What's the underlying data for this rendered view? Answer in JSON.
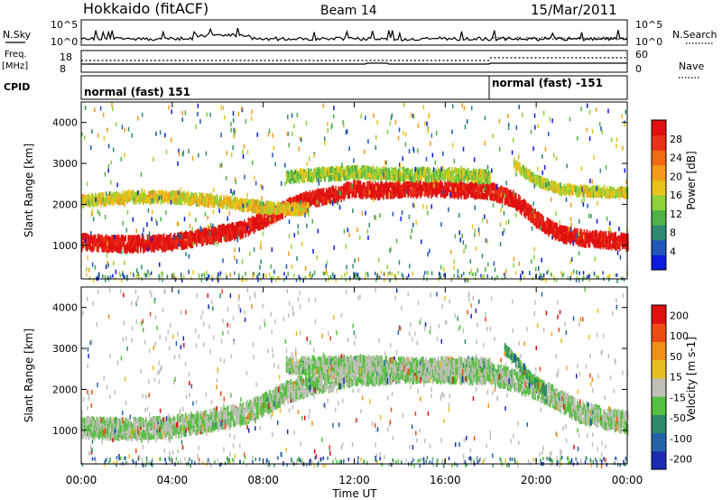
{
  "header": {
    "station": "Hokkaido (fitACF)",
    "beam": "Beam 14",
    "date": "15/Mar/2011"
  },
  "top_panels": {
    "nsky_label": "N.Sky",
    "nsearch_label": "N.Search",
    "nsky_ticks": [
      "10^5",
      "10^0"
    ],
    "nsky_right_ticks": [
      "10^5",
      "10^0"
    ],
    "freq_label_line1": "Freq.",
    "freq_label_line2": "[MHz]",
    "freq_ticks": [
      "18",
      "8"
    ],
    "nave_label": "Nave",
    "nave_ticks": [
      "60",
      "0"
    ],
    "cpid_label": "CPID",
    "cpid_segments": [
      {
        "label": "normal (fast) 151",
        "start_hour": 0
      },
      {
        "label": "normal (fast) -151",
        "start_hour": 18
      }
    ]
  },
  "chart_data": [
    {
      "type": "heatmap",
      "name": "power",
      "ylabel": "Slant Range [km]",
      "ylim": [
        180,
        4500
      ],
      "yticks": [
        1000,
        2000,
        3000,
        4000
      ],
      "xlim": [
        0,
        24
      ],
      "colorbar": {
        "label": "Power [dB]",
        "ticks": [
          "4",
          "8",
          "12",
          "16",
          "20",
          "24",
          "28"
        ],
        "colors": [
          "#0a1bdc",
          "#1f56b8",
          "#2f8a72",
          "#4fb14a",
          "#8fd13a",
          "#e8c41a",
          "#f59a1a",
          "#f06a14",
          "#e8321a",
          "#e01010"
        ]
      },
      "echo_bands": [
        {
          "x": [
            0,
            2,
            4,
            6,
            7,
            8,
            9,
            10,
            11,
            12,
            13,
            14,
            16,
            18,
            19,
            20,
            21,
            22,
            24
          ],
          "y": [
            1150,
            1100,
            1150,
            1350,
            1450,
            1700,
            2000,
            2200,
            2300,
            2450,
            2400,
            2450,
            2450,
            2400,
            2200,
            1700,
            1350,
            1250,
            1150
          ],
          "halfwidth": 160,
          "level": 0.95
        },
        {
          "x": [
            0,
            2,
            4,
            6,
            8,
            10
          ],
          "y": [
            2150,
            2250,
            2250,
            2150,
            2000,
            1950
          ],
          "halfwidth": 110,
          "level": 0.55
        },
        {
          "x": [
            9,
            12,
            14,
            16,
            18
          ],
          "y": [
            2750,
            2850,
            2800,
            2800,
            2750
          ],
          "halfwidth": 120,
          "level": 0.45
        },
        {
          "x": [
            19,
            20,
            21,
            22,
            24
          ],
          "y": [
            3050,
            2650,
            2450,
            2400,
            2350
          ],
          "halfwidth": 90,
          "level": 0.5
        }
      ]
    },
    {
      "type": "heatmap",
      "name": "velocity",
      "ylabel": "Slant Range [km]",
      "xlabel": "Time UT",
      "ylim": [
        180,
        4500
      ],
      "yticks": [
        1000,
        2000,
        3000,
        4000
      ],
      "xlim": [
        0,
        24
      ],
      "xticks": [
        "00:00",
        "04:00",
        "08:00",
        "12:00",
        "16:00",
        "20:00",
        "00:00"
      ],
      "colorbar": {
        "label": "Velocity [m s-1]",
        "ticks": [
          "200",
          "100",
          "50",
          "15",
          "-15",
          "-50",
          "-100",
          "-200"
        ],
        "colors": [
          "#1c2bb4",
          "#2563a8",
          "#2f8a6a",
          "#55c040",
          "#c0c0b8",
          "#e6c020",
          "#f0901a",
          "#ee4a14",
          "#e01010"
        ]
      },
      "echo_bands": [
        {
          "x": [
            0,
            2,
            4,
            6,
            7,
            8,
            9,
            10,
            11,
            12,
            13,
            14,
            16,
            18,
            19,
            20,
            21,
            22,
            24
          ],
          "y": [
            1150,
            1100,
            1150,
            1350,
            1450,
            1700,
            2000,
            2200,
            2300,
            2450,
            2450,
            2500,
            2500,
            2450,
            2300,
            2100,
            1800,
            1500,
            1250
          ],
          "halfwidth": 230,
          "level": 0.45
        },
        {
          "x": [
            9,
            12,
            14,
            16,
            18
          ],
          "y": [
            2650,
            2700,
            2650,
            2650,
            2650
          ],
          "halfwidth": 170,
          "level": 0.45
        },
        {
          "x": [
            18.6,
            19.2,
            20,
            20.4
          ],
          "y": [
            3050,
            2700,
            2200,
            2050
          ],
          "halfwidth": 90,
          "level": 0.33
        }
      ]
    }
  ]
}
